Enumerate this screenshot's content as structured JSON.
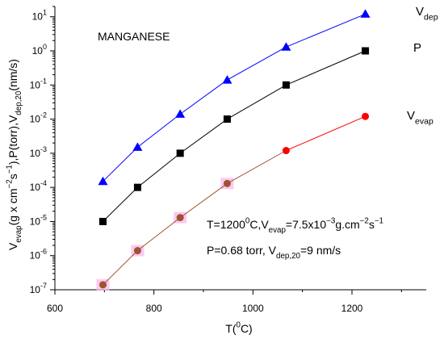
{
  "chart_data": {
    "type": "line",
    "title": "MANGANESE",
    "xlabel": {
      "main": "T(",
      "sup": "0",
      "end": "C)"
    },
    "ylabel": [
      {
        "t": "V",
        "k": "n"
      },
      {
        "t": "evap",
        "k": "sub"
      },
      {
        "t": "(g x cm",
        "k": "n"
      },
      {
        "t": "−2",
        "k": "sup"
      },
      {
        "t": "s",
        "k": "n"
      },
      {
        "t": "−1",
        "k": "sup"
      },
      {
        "t": "),P(torr),V",
        "k": "n"
      },
      {
        "t": "dep,20",
        "k": "sub"
      },
      {
        "t": "(nm/s)",
        "k": "n"
      }
    ],
    "x_scale": "linear",
    "y_scale": "log",
    "xlim": [
      600,
      1350
    ],
    "ylim": [
      1e-07,
      20
    ],
    "x_ticks": [
      600,
      800,
      1000,
      1200
    ],
    "x_tick_labels": [
      "600",
      "800",
      "1000",
      "1200"
    ],
    "y_tick_exponents": [
      -7,
      -6,
      -5,
      -4,
      -3,
      -2,
      -1,
      0,
      1
    ],
    "y_tick_labels": [
      [
        "10",
        "-7"
      ],
      [
        "10",
        "-6"
      ],
      [
        "10",
        "-5"
      ],
      [
        "10",
        "-4"
      ],
      [
        "10",
        "-3"
      ],
      [
        "10",
        "-2"
      ],
      [
        "10",
        "-1"
      ],
      [
        "10",
        "0"
      ],
      [
        "10",
        "1"
      ]
    ],
    "grid": false,
    "legend": "inline labels at series ends",
    "series": [
      {
        "name_parts": [
          {
            "t": "V",
            "k": "n"
          },
          {
            "t": "dep",
            "k": "sub"
          }
        ],
        "marker": "triangle",
        "color": "#0000ff",
        "x": [
          697,
          767,
          853,
          948,
          1067,
          1227
        ],
        "y": [
          0.00015,
          0.0015,
          0.014,
          0.14,
          1.3,
          12
        ]
      },
      {
        "name_parts": [
          {
            "t": "P",
            "k": "n"
          }
        ],
        "marker": "square",
        "color": "#000000",
        "x": [
          697,
          767,
          853,
          948,
          1067,
          1227
        ],
        "y": [
          1e-05,
          0.0001,
          0.001,
          0.01,
          0.1,
          1
        ]
      },
      {
        "name_parts": [
          {
            "t": "V",
            "k": "n"
          },
          {
            "t": "evap",
            "k": "sub"
          }
        ],
        "marker": "circle",
        "color": "#ff0000",
        "x": [
          1067,
          1227
        ],
        "y": [
          0.0012,
          0.012
        ]
      },
      {
        "name_parts": [],
        "marker": "circle",
        "color": "#a0522d",
        "x": [
          697,
          767,
          853,
          948
        ],
        "y": [
          1.4e-07,
          1.4e-06,
          1.3e-05,
          0.00013
        ]
      }
    ],
    "connector_color": "#a0522d",
    "highlight_color": "#f7b8ec",
    "annotations": [
      [
        {
          "t": "T=1200",
          "k": "n"
        },
        {
          "t": "0",
          "k": "sup"
        },
        {
          "t": "C,V",
          "k": "n"
        },
        {
          "t": "evap",
          "k": "sub"
        },
        {
          "t": "=7.5x10",
          "k": "n"
        },
        {
          "t": "−3",
          "k": "sup"
        },
        {
          "t": "g.cm",
          "k": "n"
        },
        {
          "t": "−2",
          "k": "sup"
        },
        {
          "t": "s",
          "k": "n"
        },
        {
          "t": "−1",
          "k": "sup"
        }
      ],
      [
        {
          "t": "P=0.68 torr, V",
          "k": "n"
        },
        {
          "t": "dep,20",
          "k": "sub"
        },
        {
          "t": "=9 nm/s",
          "k": "n"
        }
      ]
    ]
  }
}
